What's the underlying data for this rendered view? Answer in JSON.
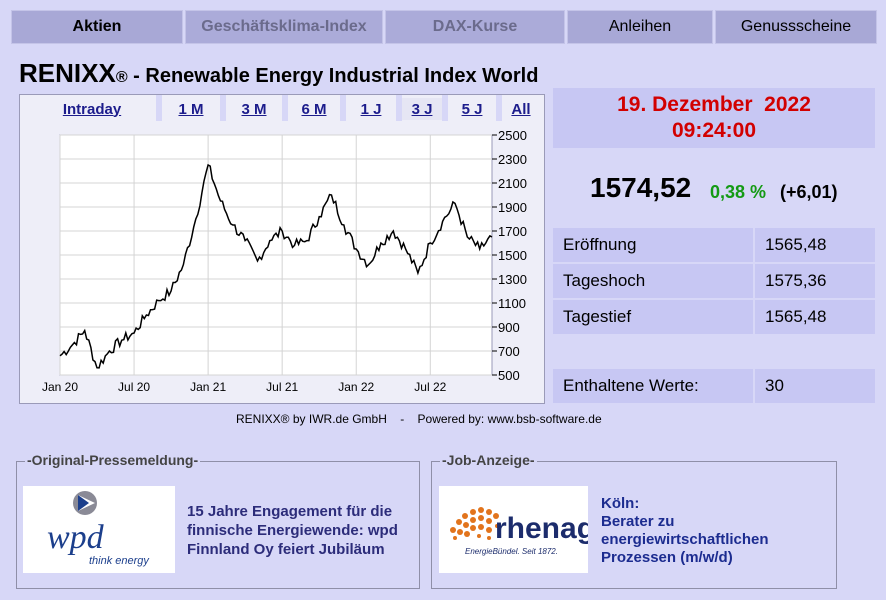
{
  "nav": {
    "tabs": [
      {
        "label": "Aktien",
        "state": "active"
      },
      {
        "label": "Geschäftsklima-Index",
        "state": "disabled"
      },
      {
        "label": "DAX-Kurse",
        "state": "disabled"
      },
      {
        "label": "Anleihen",
        "state": "normal"
      },
      {
        "label": "Genussscheine",
        "state": "normal"
      }
    ]
  },
  "header": {
    "index_name": "RENIXX",
    "registered": "®",
    "subtitle": " - Renewable Energy Industrial Index World"
  },
  "chart": {
    "ranges": [
      "Intraday",
      "1 M",
      "3 M",
      "6 M",
      "1 J",
      "3 J",
      "5 J",
      "All"
    ],
    "selected_range": "3 J",
    "credits": "RENIXX® by IWR.de GmbH    -    Powered by: www.bsb-software.de"
  },
  "chart_data": {
    "type": "line",
    "x": [
      "Jan 20",
      "Feb 20",
      "Mar 20",
      "Apr 20",
      "May 20",
      "Jun 20",
      "Jul 20",
      "Aug 20",
      "Sep 20",
      "Oct 20",
      "Nov 20",
      "Dec 20",
      "Jan 21",
      "Feb 21",
      "Mar 21",
      "Apr 21",
      "May 21",
      "Jun 21",
      "Jul 21",
      "Aug 21",
      "Sep 21",
      "Oct 21",
      "Nov 21",
      "Dec 21",
      "Jan 22",
      "Feb 22",
      "Mar 22",
      "Apr 22",
      "May 22",
      "Jun 22",
      "Jul 22",
      "Aug 22",
      "Sep 22",
      "Oct 22",
      "Nov 22",
      "Dec 22"
    ],
    "series": [
      {
        "values": [
          660,
          750,
          870,
          560,
          700,
          790,
          850,
          1000,
          1120,
          1200,
          1420,
          1800,
          2250,
          1950,
          1750,
          1620,
          1450,
          1620,
          1700,
          1580,
          1620,
          1820,
          2000,
          1750,
          1550,
          1420,
          1600,
          1700,
          1550,
          1350,
          1600,
          1780,
          1930,
          1650,
          1550,
          1650
        ]
      }
    ],
    "x_ticks": [
      "Jan 20",
      "Jul 20",
      "Jan 21",
      "Jul 21",
      "Jan 22",
      "Jul 22"
    ],
    "y_ticks": [
      500,
      700,
      900,
      1100,
      1300,
      1500,
      1700,
      1900,
      2100,
      2300,
      2500
    ],
    "ylim": [
      500,
      2500
    ],
    "grid": true,
    "line_color": "#000000"
  },
  "quote": {
    "date": "19. Dezember  2022",
    "time": "09:24:00",
    "price": "1574,52",
    "change_pct": "0,38 %",
    "change_abs": "(+6,01)"
  },
  "stats": [
    {
      "label": "Eröffnung",
      "value": "1565,48"
    },
    {
      "label": "Tageshoch",
      "value": "1575,36"
    },
    {
      "label": "Tagestief",
      "value": "1565,48"
    }
  ],
  "constituents": {
    "label": "Enthaltene Werte:",
    "value": "30"
  },
  "press": {
    "legend": "-Original-Pressemeldung-",
    "text": "15 Jahre Engagement für die finnische Energiewende: wpd Finnland Oy feiert Jubiläum",
    "logo_word": "wpd",
    "logo_tagline": "think energy"
  },
  "job": {
    "legend": "-Job-Anzeige-",
    "line1": "Köln:",
    "line2": "Berater zu energiewirtschaftlichen Prozessen (m/w/d)",
    "logo_word": "rhenag",
    "logo_tagline": "EnergieBündel. Seit 1872."
  },
  "colors": {
    "background": "#d7d7f7",
    "panel": "#c7c7f3",
    "date": "#d20000",
    "positive": "#149a14",
    "link": "#1c1c8c"
  }
}
